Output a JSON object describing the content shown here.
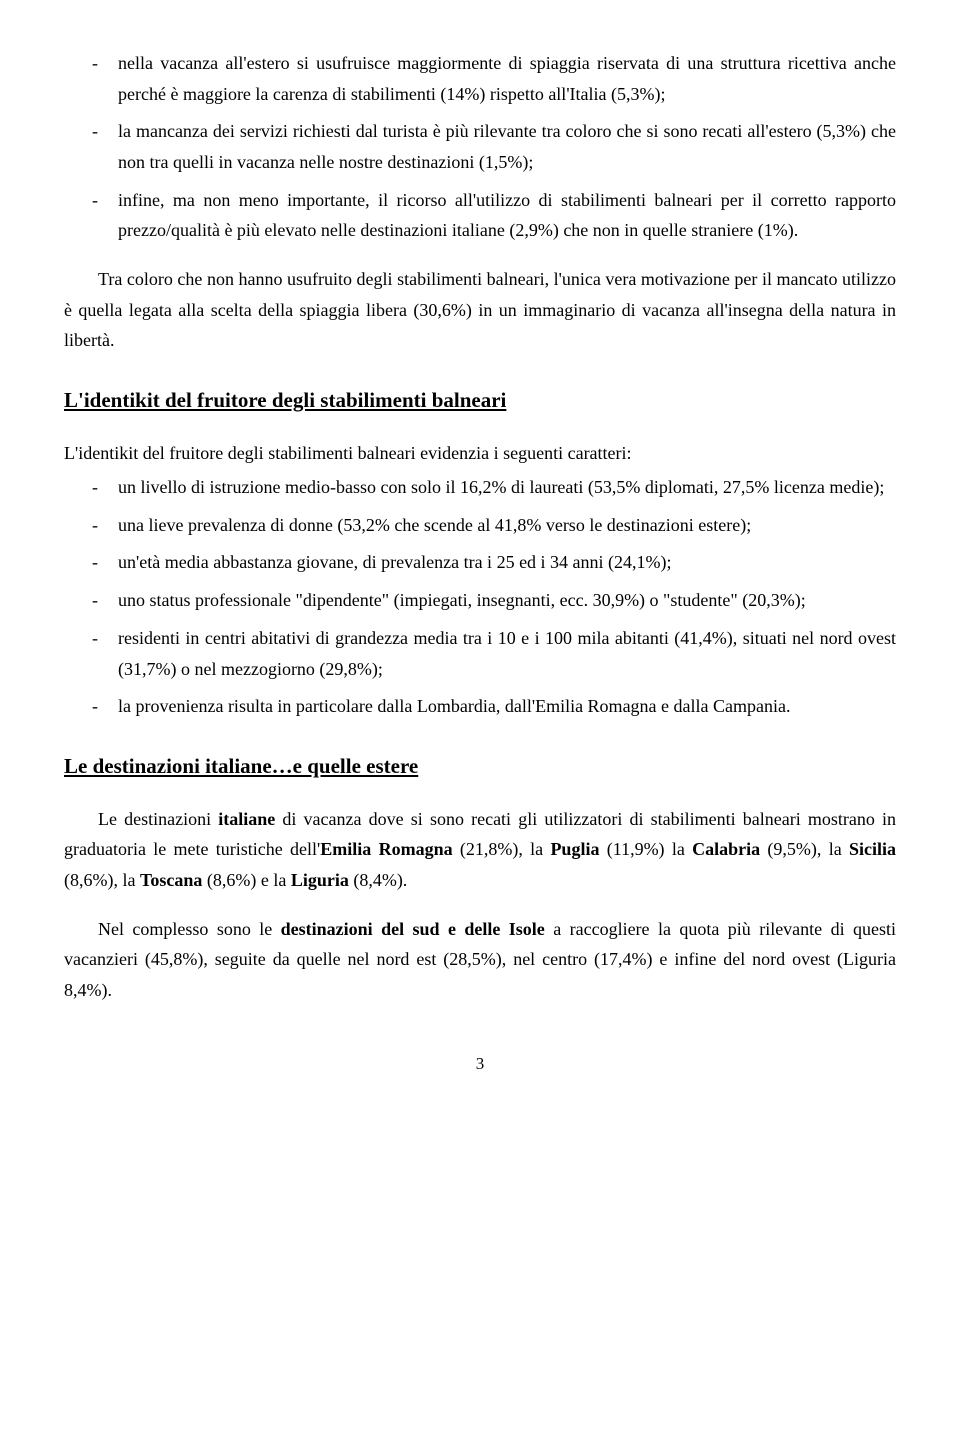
{
  "list1": {
    "items": [
      "nella vacanza all'estero si usufruisce maggiormente di spiaggia riservata di una struttura ricettiva anche perché è maggiore la carenza di stabilimenti (14%) rispetto all'Italia (5,3%);",
      "la mancanza dei servizi richiesti dal turista è più rilevante tra coloro che si sono recati all'estero (5,3%) che non tra quelli in vacanza nelle nostre destinazioni (1,5%);",
      "infine, ma non meno importante, il ricorso all'utilizzo di stabilimenti balneari per il corretto rapporto prezzo/qualità è più elevato nelle destinazioni italiane (2,9%) che non in quelle straniere (1%)."
    ]
  },
  "para1": "Tra coloro che non hanno usufruito degli stabilimenti balneari, l'unica vera motivazione per il mancato utilizzo è quella legata alla scelta della spiaggia libera (30,6%) in un immaginario di vacanza all'insegna della natura in libertà.",
  "heading1": "L'identikit del fruitore degli stabilimenti balneari",
  "lead1": "L'identikit del fruitore degli stabilimenti balneari evidenzia i seguenti caratteri:",
  "list2": {
    "items": [
      "un livello di istruzione medio-basso con solo il 16,2% di laureati (53,5% diplomati, 27,5% licenza medie);",
      "una lieve prevalenza di donne (53,2% che scende al 41,8% verso le destinazioni estere);",
      "un'età media abbastanza giovane, di prevalenza tra i 25 ed i 34 anni (24,1%);",
      "uno status professionale \"dipendente\" (impiegati, insegnanti, ecc. 30,9%) o \"studente\" (20,3%);",
      "residenti in centri abitativi di grandezza media tra i 10 e i 100 mila abitanti (41,4%), situati nel nord ovest (31,7%) o nel mezzogiorno (29,8%);",
      "la provenienza risulta in particolare dalla Lombardia, dall'Emilia Romagna e dalla Campania."
    ]
  },
  "heading2": "Le destinazioni italiane…e quelle estere",
  "para2_html": "Le destinazioni <b>italiane</b> di vacanza dove si sono recati gli utilizzatori di stabilimenti balneari mostrano in graduatoria le mete turistiche dell'<b>Emilia Romagna</b> (21,8%), la <b>Puglia</b> (11,9%) la <b>Calabria</b> (9,5%), la <b>Sicilia</b> (8,6%), la <b>Toscana</b> (8,6%) e la <b>Liguria</b> (8,4%).",
  "para3_html": "Nel complesso sono le <b>destinazioni del sud e delle Isole</b> a raccogliere la quota più rilevante di questi vacanzieri (45,8%), seguite da quelle nel nord est (28,5%), nel centro (17,4%) e infine del nord ovest (Liguria 8,4%).",
  "page_number": "3"
}
